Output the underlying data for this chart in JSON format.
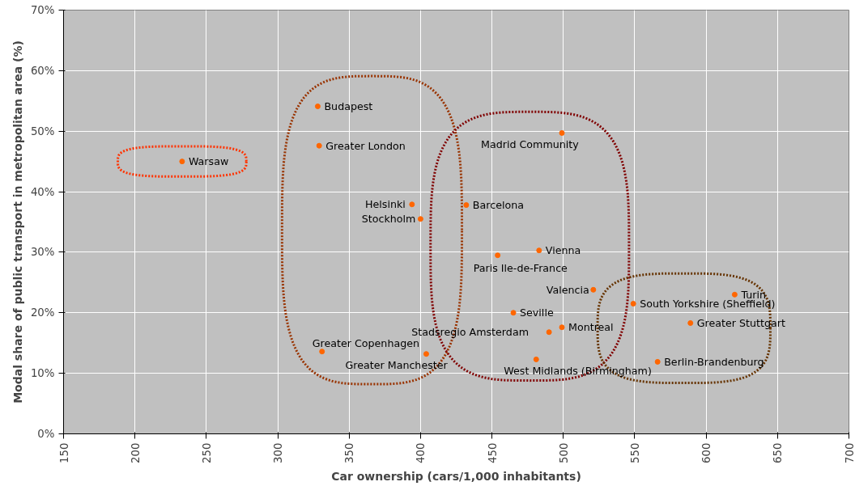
{
  "chart_data": {
    "type": "scatter",
    "xlabel": "Car ownership (cars/1,000 inhabitants)",
    "ylabel": "Modal share of public transport in metropolitan area (%)",
    "series": [
      {
        "color": "#ff6600",
        "x": [
          233,
          328,
          329,
          394,
          400,
          432,
          499,
          483,
          454,
          521,
          465,
          499,
          490,
          481,
          331,
          404,
          620,
          549,
          589,
          566
        ],
        "values": [
          45.0,
          54.1,
          47.6,
          37.9,
          35.5,
          37.8,
          49.7,
          30.3,
          29.5,
          23.8,
          20.0,
          17.6,
          16.8,
          12.3,
          13.6,
          13.2,
          23.0,
          21.5,
          18.3,
          11.9
        ]
      }
    ],
    "annotations": [
      {
        "text": "Warsaw",
        "x": 233,
        "y": 45.0
      },
      {
        "text": "Budapest",
        "x": 328,
        "y": 54.1
      },
      {
        "text": "Greater London",
        "x": 329,
        "y": 47.6
      },
      {
        "text": "Helsinki",
        "x": 394,
        "y": 37.9
      },
      {
        "text": "Stockholm",
        "x": 400,
        "y": 35.5
      },
      {
        "text": "Barcelona",
        "x": 432,
        "y": 37.8
      },
      {
        "text": "Madrid Community",
        "x": 499,
        "y": 49.7
      },
      {
        "text": "Vienna",
        "x": 483,
        "y": 30.3
      },
      {
        "text": "Paris Ile-de-France",
        "x": 454,
        "y": 29.5
      },
      {
        "text": "Valencia",
        "x": 521,
        "y": 23.8
      },
      {
        "text": "Seville",
        "x": 465,
        "y": 20.0
      },
      {
        "text": "Montreal",
        "x": 499,
        "y": 17.6
      },
      {
        "text": "Stadsregio Amsterdam",
        "x": 490,
        "y": 16.8
      },
      {
        "text": "West Midlands (Birmingham)",
        "x": 481,
        "y": 12.3
      },
      {
        "text": "Greater Copenhagen",
        "x": 331,
        "y": 13.6
      },
      {
        "text": "Greater Manchester",
        "x": 404,
        "y": 13.2
      },
      {
        "text": "Turin",
        "x": 620,
        "y": 23.0
      },
      {
        "text": "South Yorkshire (Sheffield)",
        "x": 549,
        "y": 21.5
      },
      {
        "text": "Greater Stuttgart",
        "x": 589,
        "y": 18.3
      },
      {
        "text": "Berlin-Brandenburg",
        "x": 566,
        "y": 11.9
      }
    ],
    "xlim": [
      150,
      700
    ],
    "xticks": [
      150,
      200,
      250,
      300,
      350,
      400,
      450,
      500,
      550,
      600,
      650,
      700
    ],
    "ylim": [
      0,
      70
    ],
    "yticks": [
      {
        "value": 0,
        "label": "0%"
      },
      {
        "value": 10,
        "label": "10%"
      },
      {
        "value": 20,
        "label": "20%"
      },
      {
        "value": 30,
        "label": "30%"
      },
      {
        "value": 40,
        "label": "40%"
      },
      {
        "value": 50,
        "label": "50%"
      },
      {
        "value": 60,
        "label": "60%"
      },
      {
        "value": 70,
        "label": "70%"
      }
    ],
    "grid": true,
    "marker": "circle"
  }
}
